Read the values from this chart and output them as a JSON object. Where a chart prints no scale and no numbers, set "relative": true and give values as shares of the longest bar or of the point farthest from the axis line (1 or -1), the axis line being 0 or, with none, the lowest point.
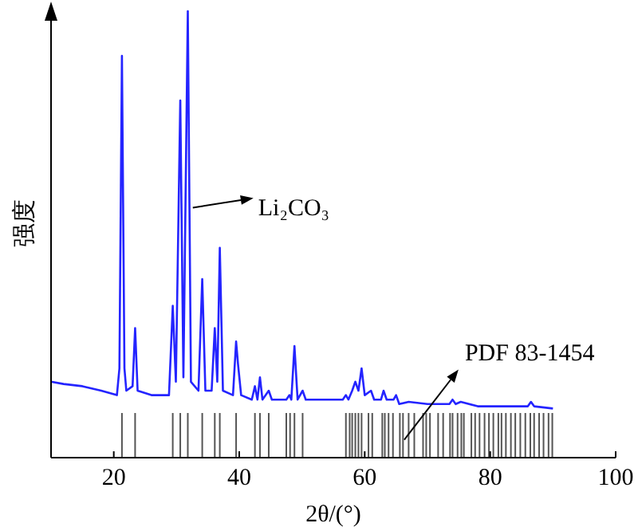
{
  "chart_data": {
    "type": "line",
    "relative": true,
    "xlabel": "2θ/(°)",
    "ylabel": "强度",
    "xlim": [
      10,
      100
    ],
    "xticks": [
      20,
      40,
      60,
      80,
      100
    ],
    "series": [
      {
        "color": "#2424ff",
        "x": [
          10,
          12,
          15,
          18,
          20.5,
          20.9,
          21.3,
          21.7,
          22.0,
          23.0,
          23.4,
          23.8,
          26,
          28.8,
          29.4,
          29.9,
          30.6,
          31.1,
          31.8,
          32.3,
          33.5,
          34.1,
          34.6,
          35.6,
          36.1,
          36.5,
          36.9,
          37.4,
          39.0,
          39.5,
          39.8,
          40.3,
          42.0,
          42.5,
          42.9,
          43.3,
          43.7,
          44.7,
          45.2,
          47.5,
          48.0,
          48.3,
          48.8,
          49.3,
          50.1,
          50.6,
          55,
          56.5,
          57.0,
          57.4,
          58.0,
          58.5,
          59.0,
          59.5,
          60.0,
          61.0,
          61.5,
          62.6,
          63.0,
          63.5,
          64.6,
          65.0,
          65.5,
          67,
          70,
          73.5,
          74.0,
          74.5,
          75.3,
          78,
          82,
          86,
          86.5,
          87,
          90
        ],
        "values": [
          0.17,
          0.165,
          0.16,
          0.15,
          0.14,
          0.2,
          0.9,
          0.2,
          0.15,
          0.16,
          0.29,
          0.15,
          0.14,
          0.14,
          0.34,
          0.17,
          0.8,
          0.18,
          1.0,
          0.17,
          0.15,
          0.4,
          0.15,
          0.15,
          0.29,
          0.17,
          0.47,
          0.15,
          0.14,
          0.26,
          0.21,
          0.14,
          0.13,
          0.16,
          0.13,
          0.18,
          0.13,
          0.15,
          0.13,
          0.13,
          0.14,
          0.13,
          0.25,
          0.13,
          0.15,
          0.13,
          0.13,
          0.13,
          0.14,
          0.13,
          0.15,
          0.17,
          0.15,
          0.2,
          0.14,
          0.15,
          0.13,
          0.13,
          0.15,
          0.13,
          0.13,
          0.14,
          0.12,
          0.125,
          0.12,
          0.12,
          0.13,
          0.12,
          0.125,
          0.115,
          0.115,
          0.115,
          0.125,
          0.115,
          0.11
        ]
      },
      {
        "type": "bar",
        "color": "#555555",
        "x": [
          21.3,
          23.4,
          29.4,
          30.6,
          31.8,
          34.1,
          36.1,
          36.9,
          39.5,
          42.5,
          43.3,
          44.7,
          47.5,
          48.1,
          48.8,
          50.1,
          57.0,
          57.6,
          58.0,
          58.5,
          59.0,
          59.5,
          60.6,
          61.2,
          62.8,
          63.2,
          63.8,
          64.5,
          65.6,
          66.1,
          67.0,
          67.9,
          69.3,
          69.8,
          70.4,
          71.7,
          72.5,
          73.6,
          74.0,
          74.8,
          75.4,
          75.8,
          77.0,
          77.6,
          78.3,
          79.1,
          79.8,
          80.5,
          81.3,
          81.8,
          82.5,
          83.3,
          84.0,
          84.8,
          85.6,
          86.4,
          87.0,
          87.8,
          88.5,
          89.3,
          89.9
        ],
        "values": [
          0.1,
          0.1,
          0.1,
          0.1,
          0.1,
          0.1,
          0.1,
          0.1,
          0.1,
          0.1,
          0.1,
          0.1,
          0.1,
          0.1,
          0.1,
          0.1,
          0.1,
          0.1,
          0.1,
          0.1,
          0.1,
          0.1,
          0.1,
          0.1,
          0.1,
          0.1,
          0.1,
          0.1,
          0.1,
          0.1,
          0.1,
          0.1,
          0.1,
          0.1,
          0.1,
          0.1,
          0.1,
          0.1,
          0.1,
          0.1,
          0.1,
          0.1,
          0.1,
          0.1,
          0.1,
          0.1,
          0.1,
          0.1,
          0.1,
          0.1,
          0.1,
          0.1,
          0.1,
          0.1,
          0.1,
          0.1,
          0.1,
          0.1,
          0.1,
          0.1,
          0.1
        ]
      }
    ],
    "annotations": [
      {
        "text": "Li₂CO₃",
        "x": 32.6,
        "y": 0.56
      },
      {
        "text": "PDF 83-1454",
        "x": 66.3,
        "y": 0.04
      }
    ]
  }
}
